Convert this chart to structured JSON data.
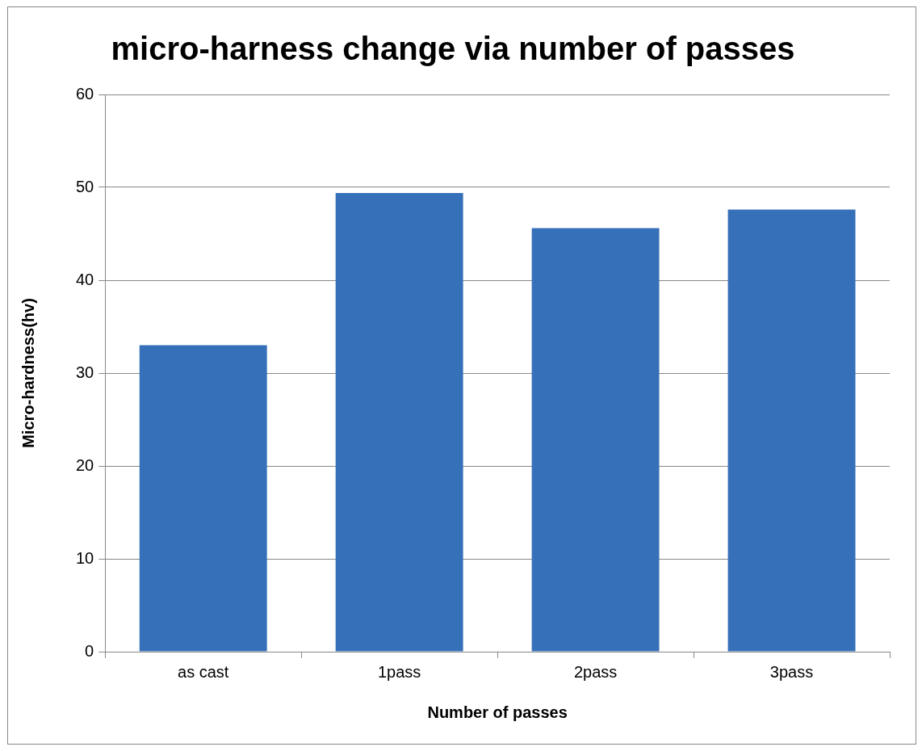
{
  "chart_data": {
    "type": "bar",
    "title": "micro-harness change via number of passes",
    "xlabel": "Number of passes",
    "ylabel": "Micro-hardness(hv)",
    "categories": [
      "as cast",
      "1pass",
      "2pass",
      "3pass"
    ],
    "values": [
      33,
      49.4,
      45.6,
      47.6
    ],
    "color": "#3670b8",
    "ylim": [
      0,
      60
    ],
    "yticks": [
      0,
      10,
      20,
      30,
      40,
      50,
      60
    ],
    "grid": "y",
    "legend": false
  }
}
